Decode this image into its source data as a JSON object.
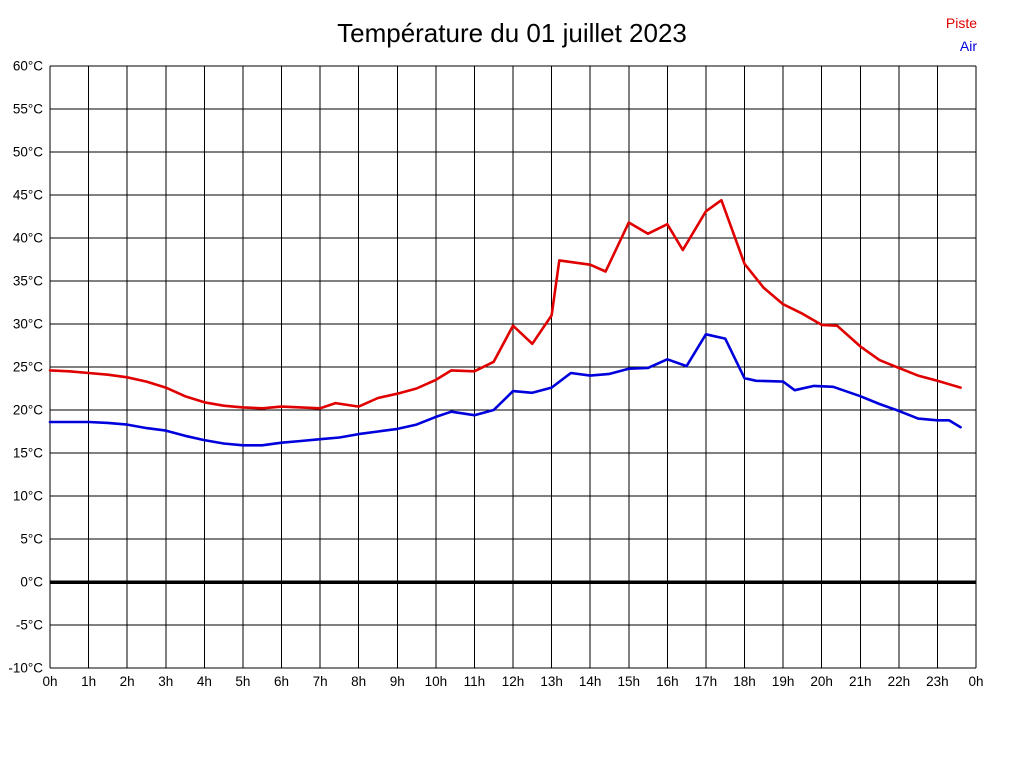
{
  "title": "Température du 01 juillet 2023",
  "legend": [
    {
      "label": "Piste",
      "color": "#e00000"
    },
    {
      "label": "Air",
      "color": "#0000dd"
    }
  ],
  "chart_data": {
    "type": "line",
    "title": "Température du 01 juillet 2023",
    "xlabel": "",
    "ylabel": "°C",
    "xlim": [
      0,
      24
    ],
    "ylim": [
      -10,
      60
    ],
    "y_tick_step": 5,
    "y_tick_suffix": "°C",
    "grid": true,
    "zero_line_bold": true,
    "legend_position": "top-right",
    "x_ticks": [
      "0h",
      "1h",
      "2h",
      "3h",
      "4h",
      "5h",
      "6h",
      "7h",
      "8h",
      "9h",
      "10h",
      "11h",
      "12h",
      "13h",
      "14h",
      "15h",
      "16h",
      "17h",
      "18h",
      "19h",
      "20h",
      "21h",
      "22h",
      "23h",
      "0h"
    ],
    "series": [
      {
        "name": "Piste",
        "color": "#e00000",
        "x": [
          0,
          0.5,
          1,
          1.5,
          2,
          2.5,
          3,
          3.5,
          4,
          4.5,
          5,
          5.5,
          6,
          6.5,
          7,
          7.4,
          8,
          8.5,
          9,
          9.5,
          10,
          10.4,
          11,
          11.5,
          12,
          12.5,
          13,
          13.2,
          14,
          14.4,
          15,
          15.5,
          16,
          16.4,
          17,
          17.4,
          18,
          18.5,
          19,
          19.5,
          20,
          20.4,
          21,
          21.5,
          22,
          22.5,
          23,
          23.6
        ],
        "y": [
          24.6,
          24.5,
          24.3,
          24.1,
          23.8,
          23.3,
          22.6,
          21.6,
          20.9,
          20.5,
          20.3,
          20.2,
          20.4,
          20.3,
          20.2,
          20.8,
          20.4,
          21.4,
          21.9,
          22.5,
          23.5,
          24.6,
          24.5,
          25.6,
          29.8,
          27.7,
          31.0,
          37.4,
          36.9,
          36.1,
          41.8,
          40.5,
          41.6,
          38.6,
          43.1,
          44.4,
          37.0,
          34.2,
          32.3,
          31.2,
          29.9,
          29.8,
          27.4,
          25.8,
          24.9,
          24.0,
          23.4,
          22.6
        ]
      },
      {
        "name": "Air",
        "color": "#0000dd",
        "x": [
          0,
          0.5,
          1,
          1.5,
          2,
          2.5,
          3,
          3.5,
          4,
          4.5,
          5,
          5.5,
          6,
          6.5,
          7,
          7.5,
          8,
          8.5,
          9,
          9.5,
          10,
          10.4,
          11,
          11.5,
          12,
          12.5,
          13,
          13.5,
          14,
          14.5,
          15,
          15.5,
          16,
          16.5,
          17,
          17.5,
          18,
          18.3,
          19,
          19.3,
          19.8,
          20.3,
          21,
          21.5,
          22,
          22.5,
          23,
          23.3,
          23.6
        ],
        "y": [
          18.6,
          18.6,
          18.6,
          18.5,
          18.3,
          17.9,
          17.6,
          17.0,
          16.5,
          16.1,
          15.9,
          15.9,
          16.2,
          16.4,
          16.6,
          16.8,
          17.2,
          17.5,
          17.8,
          18.3,
          19.2,
          19.8,
          19.4,
          20.0,
          22.2,
          22.0,
          22.6,
          24.3,
          24.0,
          24.2,
          24.8,
          24.9,
          25.9,
          25.1,
          28.8,
          28.3,
          23.7,
          23.4,
          23.3,
          22.3,
          22.8,
          22.7,
          21.6,
          20.7,
          19.9,
          19.0,
          18.8,
          18.8,
          18.0
        ]
      }
    ]
  }
}
